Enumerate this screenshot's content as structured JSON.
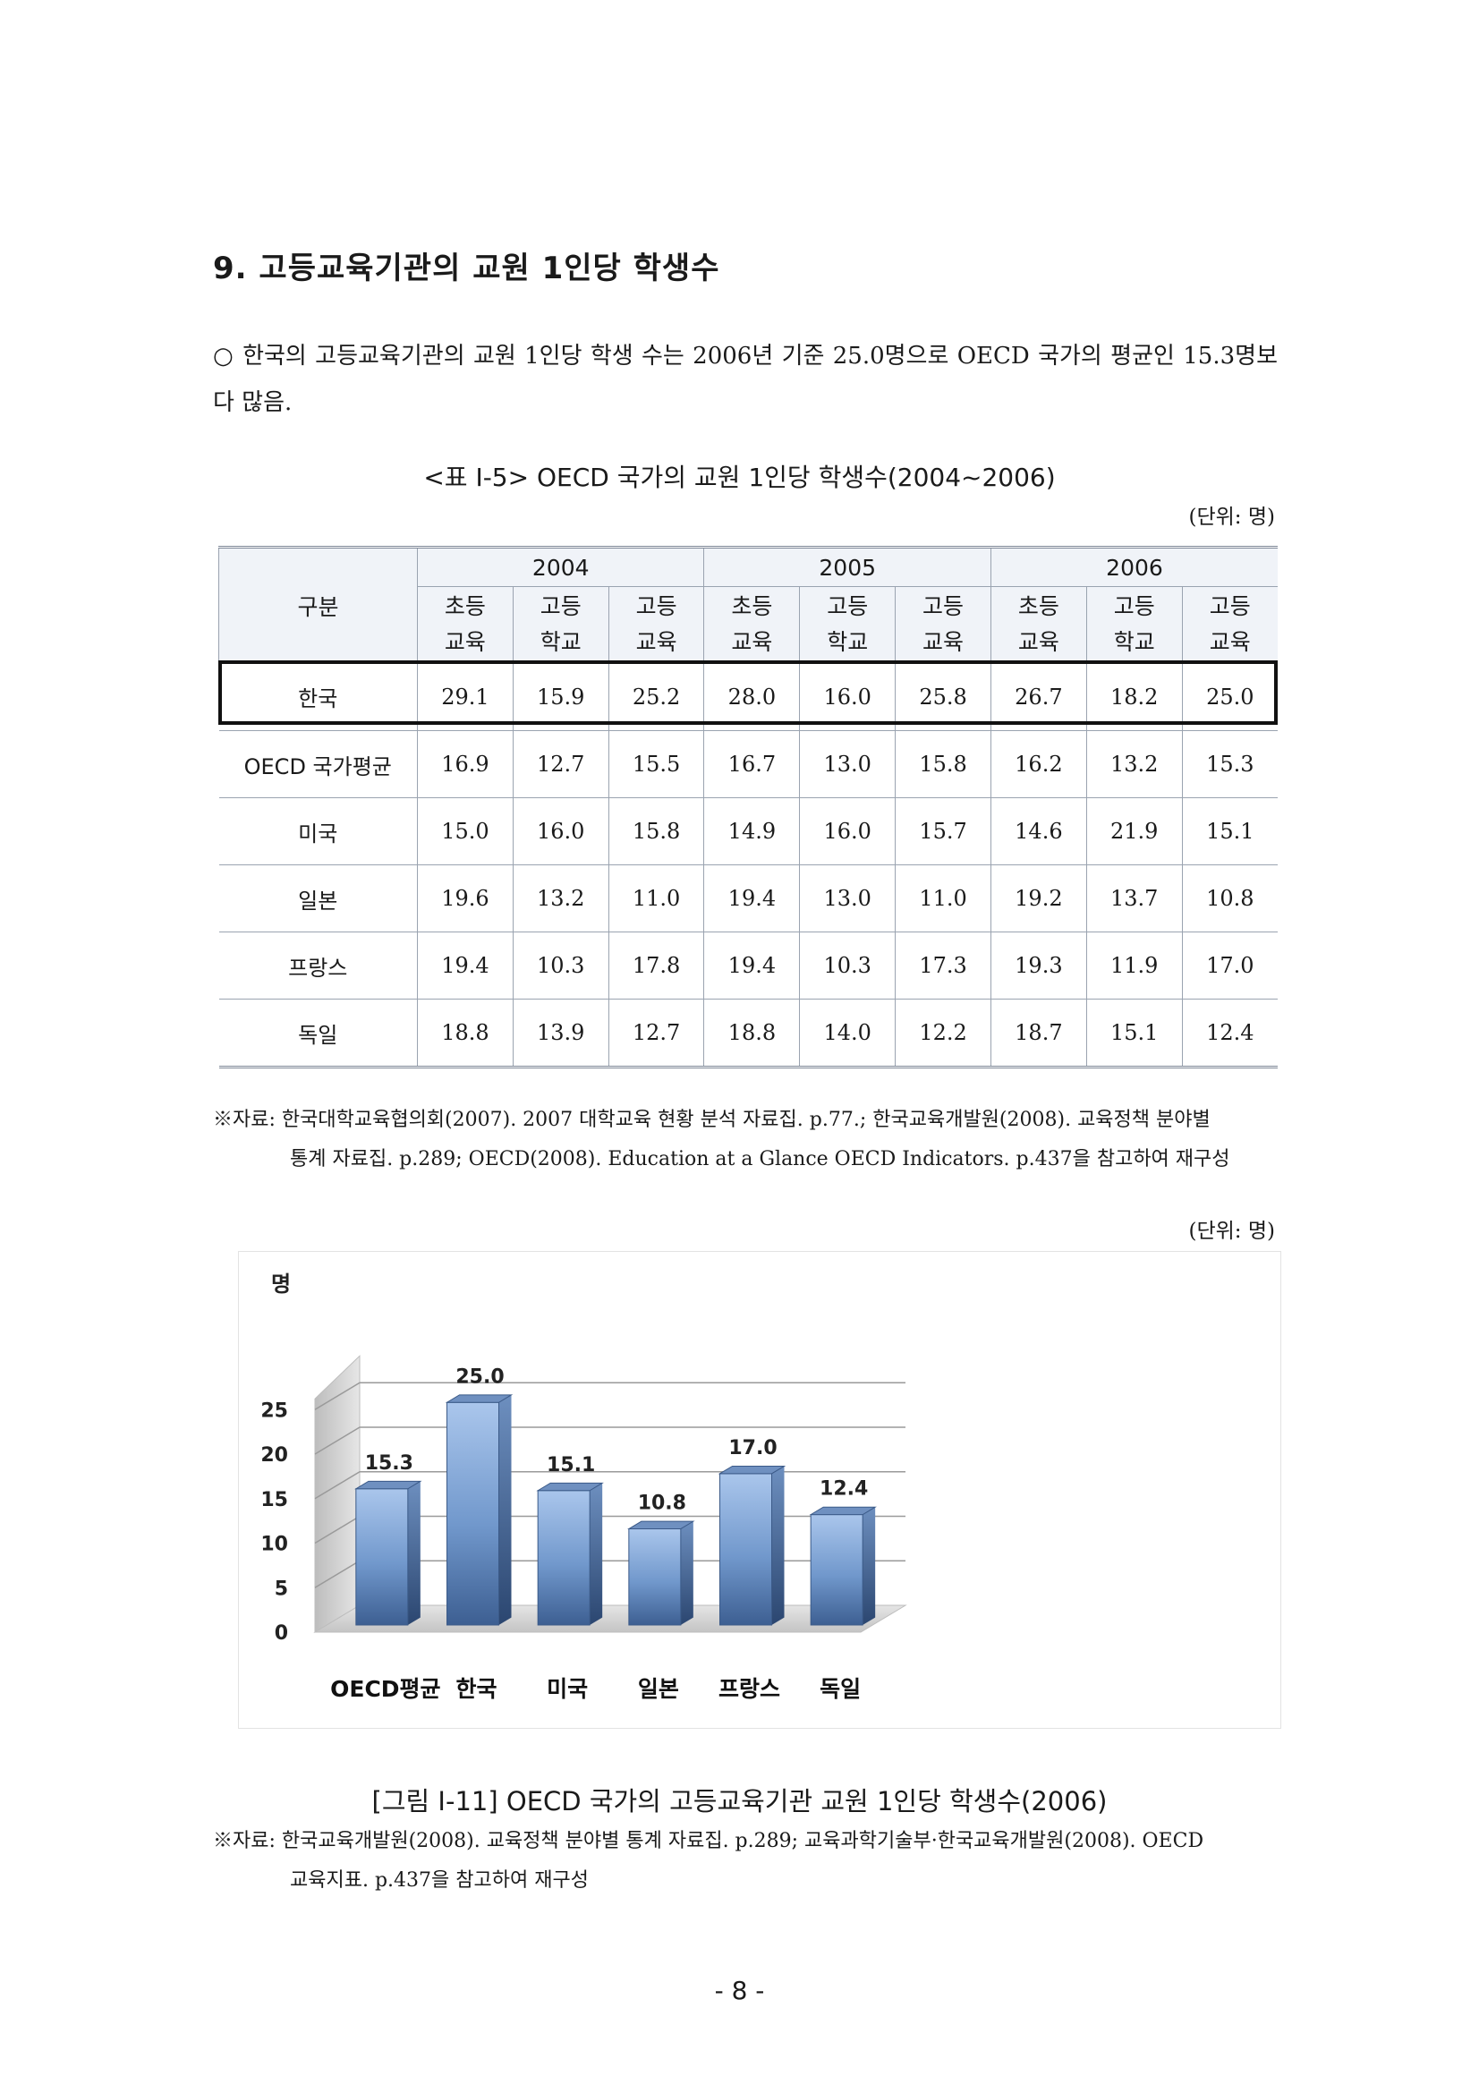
{
  "section_title": "9. 고등교육기관의 교원 1인당 학생수",
  "intro_text": "○ 한국의 고등교육기관의 교원 1인당 학생 수는 2006년 기준 25.0명으로 OECD 국가의 평균인 15.3명보다 많음.",
  "table_caption": "<표 Ⅰ-5> OECD 국가의 교원 1인당 학생수(2004~2006)",
  "unit_label": "(단위: 명)",
  "table": {
    "row_header": "구분",
    "years": [
      "2004",
      "2005",
      "2006"
    ],
    "levels": [
      [
        "초등",
        "교육"
      ],
      [
        "고등",
        "학교"
      ],
      [
        "고등",
        "교육"
      ]
    ],
    "rows": [
      {
        "label": "한국",
        "values": [
          "29.1",
          "15.9",
          "25.2",
          "28.0",
          "16.0",
          "25.8",
          "26.7",
          "18.2",
          "25.0"
        ]
      },
      {
        "label": "OECD 국가평균",
        "values": [
          "16.9",
          "12.7",
          "15.5",
          "16.7",
          "13.0",
          "15.8",
          "16.2",
          "13.2",
          "15.3"
        ]
      },
      {
        "label": "미국",
        "values": [
          "15.0",
          "16.0",
          "15.8",
          "14.9",
          "16.0",
          "15.7",
          "14.6",
          "21.9",
          "15.1"
        ]
      },
      {
        "label": "일본",
        "values": [
          "19.6",
          "13.2",
          "11.0",
          "19.4",
          "13.0",
          "11.0",
          "19.2",
          "13.7",
          "10.8"
        ]
      },
      {
        "label": "프랑스",
        "values": [
          "19.4",
          "10.3",
          "17.8",
          "19.4",
          "10.3",
          "17.3",
          "19.3",
          "11.9",
          "17.0"
        ]
      },
      {
        "label": "독일",
        "values": [
          "18.8",
          "13.9",
          "12.7",
          "18.8",
          "14.0",
          "12.2",
          "18.7",
          "15.1",
          "12.4"
        ]
      }
    ]
  },
  "table_source": {
    "line1": "※자료: 한국대학교육협의회(2007). 2007 대학교육 현황 분석 자료집. p.77.; 한국교육개발원(2008). 교육정책 분야별",
    "line2": "통계 자료집. p.289; OECD(2008). Education at a Glance OECD Indicators. p.437을 참고하여 재구성"
  },
  "figure_caption": "[그림 Ⅰ-11] OECD 국가의 고등교육기관 교원 1인당 학생수(2006)",
  "figure_source": {
    "line1": "※자료: 한국교육개발원(2008). 교육정책 분야별 통계 자료집. p.289; 교육과학기술부·한국교육개발원(2008). OECD",
    "line2": "교육지표. p.437을 참고하여 재구성"
  },
  "page_number": "- 8 -",
  "chart_data": {
    "type": "bar",
    "ylabel": "명",
    "categories": [
      "OECD평균",
      "한국",
      "미국",
      "일본",
      "프랑스",
      "독일"
    ],
    "values": [
      15.3,
      25.0,
      15.1,
      10.8,
      17.0,
      12.4
    ],
    "value_labels": [
      "15.3",
      "25.0",
      "15.1",
      "10.8",
      "17.0",
      "12.4"
    ],
    "yticks": [
      "0",
      "5",
      "10",
      "15",
      "20",
      "25"
    ],
    "ylim": [
      0,
      25
    ],
    "bar_color": "#4f77ad",
    "grid": true
  }
}
